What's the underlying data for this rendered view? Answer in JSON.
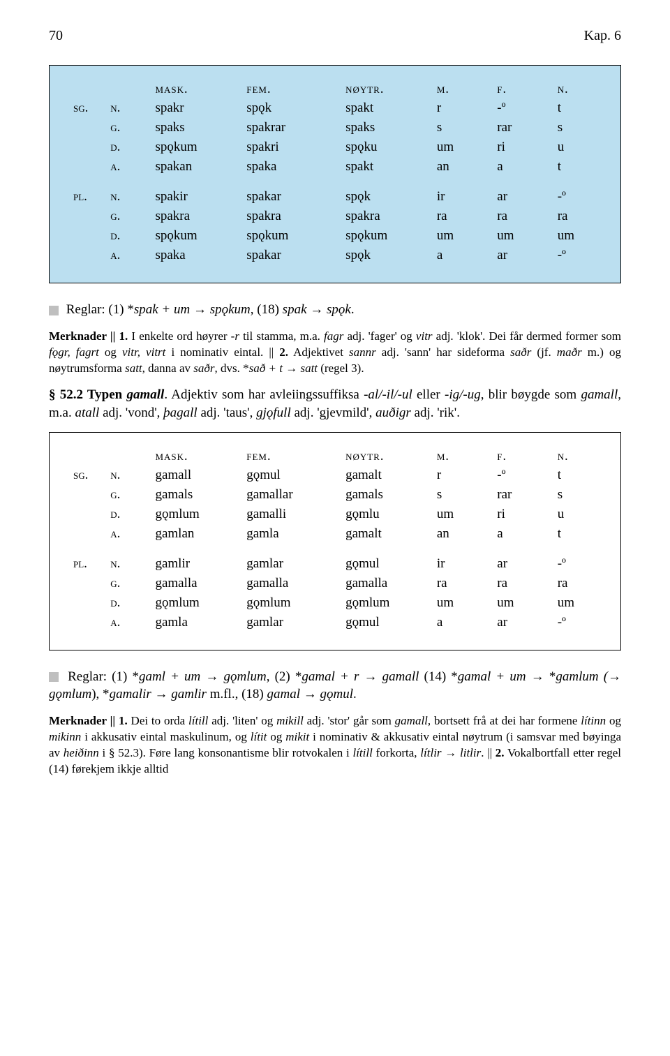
{
  "header": {
    "pagenum": "70",
    "chapter": "Kap. 6"
  },
  "table1": {
    "headers": [
      "",
      "",
      "mask.",
      "fem.",
      "nøytr.",
      "m.",
      "f.",
      "n."
    ],
    "rows_sg": [
      [
        "sg.",
        "n.",
        "spakr",
        "spǫk",
        "spakt",
        "r",
        "-º",
        "t"
      ],
      [
        "",
        "g.",
        "spaks",
        "spakrar",
        "spaks",
        "s",
        "rar",
        "s"
      ],
      [
        "",
        "d.",
        "spǫkum",
        "spakri",
        "spǫku",
        "um",
        "ri",
        "u"
      ],
      [
        "",
        "a.",
        "spakan",
        "spaka",
        "spakt",
        "an",
        "a",
        "t"
      ]
    ],
    "rows_pl": [
      [
        "pl.",
        "n.",
        "spakir",
        "spakar",
        "spǫk",
        "ir",
        "ar",
        "-º"
      ],
      [
        "",
        "g.",
        "spakra",
        "spakra",
        "spakra",
        "ra",
        "ra",
        "ra"
      ],
      [
        "",
        "d.",
        "spǫkum",
        "spǫkum",
        "spǫkum",
        "um",
        "um",
        "um"
      ],
      [
        "",
        "a.",
        "spaka",
        "spakar",
        "spǫk",
        "a",
        "ar",
        "-º"
      ]
    ]
  },
  "rules1": {
    "pre": "Reglar: (1) *",
    "i1": "spak + um",
    "arr1": " → ",
    "i2": "spǫkum",
    "mid": ", (18) ",
    "i3": "spak",
    "arr2": " → ",
    "i4": "spǫk",
    "end": "."
  },
  "notes1": {
    "t1": "Merknader || 1.",
    "t2": " I enkelte ord høyrer ",
    "i1": "-r",
    "t3": " til stamma, m.a. ",
    "i2": "fagr",
    "t4": " adj. 'fager' og ",
    "i3": "vitr",
    "t5": " adj. 'klok'. Dei får dermed former som ",
    "i4": "fǫgr, fagrt",
    "t6": " og ",
    "i5": "vitr, vitrt",
    "t7": " i nominativ eintal. || ",
    "t8": "2.",
    "t9": " Adjektivet ",
    "i6": "sannr",
    "t10": " adj. 'sann' har sideforma ",
    "i7": "saðr",
    "t11": " (jf. ",
    "i8": "maðr",
    "t12": " m.) og nøytrumsforma ",
    "i9": "satt",
    "t13": ", danna av ",
    "i10": "saðr",
    "t14": ", dvs. *",
    "i11": "sað + t",
    "t15": " → ",
    "i12": "satt",
    "t16": " (regel 3)."
  },
  "section": {
    "num": "§ 52.2 Typen ",
    "title": "gamall",
    "t1": ". Adjektiv som har avleiingssuffiksa ",
    "i1": "-al/-il/-ul",
    "t2": " eller ",
    "i2": "-ig/-ug",
    "t3": ", blir bøygde som ",
    "i3": "gamall",
    "t4": ", m.a. ",
    "i4": "atall",
    "t5": " adj. 'vond', ",
    "i5": "þagall",
    "t6": " adj. 'taus', ",
    "i6": "gjǫfull",
    "t7": " adj. 'gjev­mild', ",
    "i7": "auðigr",
    "t8": " adj. 'rik'."
  },
  "table2": {
    "headers": [
      "",
      "",
      "mask.",
      "fem.",
      "nøytr.",
      "m.",
      "f.",
      "n."
    ],
    "rows_sg": [
      [
        "sg.",
        "n.",
        "gamall",
        "gǫmul",
        "gamalt",
        "r",
        "-º",
        "t"
      ],
      [
        "",
        "g.",
        "gamals",
        "gamallar",
        "gamals",
        "s",
        "rar",
        "s"
      ],
      [
        "",
        "d.",
        "gǫmlum",
        "gamalli",
        "gǫmlu",
        "um",
        "ri",
        "u"
      ],
      [
        "",
        "a.",
        "gamlan",
        "gamla",
        "gamalt",
        "an",
        "a",
        "t"
      ]
    ],
    "rows_pl": [
      [
        "pl.",
        "n.",
        "gamlir",
        "gamlar",
        "gǫmul",
        "ir",
        "ar",
        "-º"
      ],
      [
        "",
        "g.",
        "gamalla",
        "gamalla",
        "gamalla",
        "ra",
        "ra",
        "ra"
      ],
      [
        "",
        "d.",
        "gǫmlum",
        "gǫmlum",
        "gǫmlum",
        "um",
        "um",
        "um"
      ],
      [
        "",
        "a.",
        "gamla",
        "gamlar",
        "gǫmul",
        "a",
        "ar",
        "-º"
      ]
    ]
  },
  "rules2": {
    "pre": "Reglar: (1) *",
    "i1": "gaml + um",
    "arr1": " → ",
    "i2": "gǫmlum",
    "mid1": ", (2) *",
    "i3": "gamal + r",
    "arr2": " → ",
    "i4": "gamall",
    "mid2": " (14) *",
    "i5": "gamal + um",
    "arr3": " → *",
    "i6": "gamlum (",
    "arr4": "→ ",
    "i7": "gǫmlum",
    "mid3": "), *",
    "i8": "gamalir",
    "arr5": " → ",
    "i9": "gamlir",
    "mid4": " m.fl., (18) ",
    "i10": "gamal",
    "arr6": " → ",
    "i11": "gǫmul",
    "end": "."
  },
  "notes2": {
    "t1": "Merknader || 1.",
    "t2": " Dei to orda ",
    "i1": "lítill",
    "t3": " adj. 'liten' og ",
    "i2": "mikill",
    "t4": " adj. 'stor' går som ",
    "i3": "gamall",
    "t5": ", bortsett frå at dei har formene ",
    "i4": "lítinn",
    "t6": " og ",
    "i5": "mikinn",
    "t7": " i akkusativ eintal maskulinum, og ",
    "i6": "lítit",
    "t8": " og ",
    "i7": "mikit",
    "t9": " i nominativ & akkusativ eintal nøytrum (i samsvar med bøyinga av ",
    "i8": "heiðinn",
    "t10": " i § 52.3). Føre lang konsonantisme blir rotvokalen i ",
    "i9": "lítill",
    "t11": " forkorta, ",
    "i10": "lítlir",
    "t12": " → ",
    "i11": "litlir",
    "t13": ". || ",
    "t14": "2.",
    "t15": " Vokalbortfall etter regel (14) førekjem ikkje alltid"
  }
}
